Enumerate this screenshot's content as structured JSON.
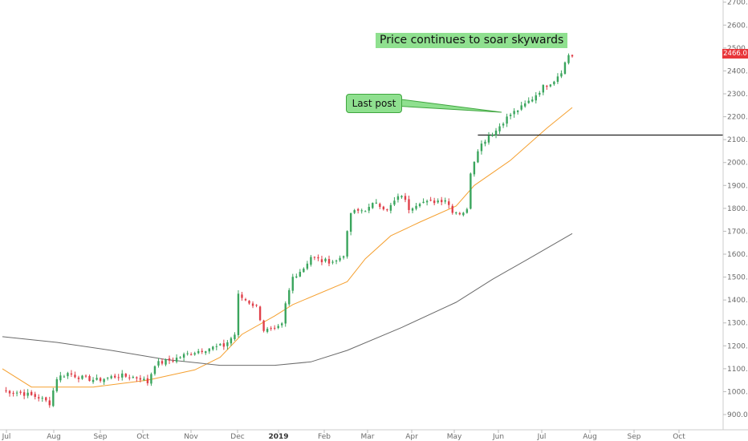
{
  "chart_data": {
    "type": "candlestick",
    "y_axis": {
      "ticks": [
        "900.0",
        "1000.0",
        "1100.0",
        "1200.0",
        "1300.0",
        "1400.0",
        "1500.0",
        "1600.0",
        "1700.0",
        "1800.0",
        "1900.0",
        "2000.0",
        "2100.0",
        "2200.0",
        "2300.0",
        "2400.0",
        "2500.0",
        "2600.0",
        "2700.0"
      ],
      "range": [
        830,
        2720
      ],
      "position": "right"
    },
    "x_axis": {
      "ticks": [
        "Jul",
        "Aug",
        "Sep",
        "Oct",
        "Nov",
        "Dec",
        "2019",
        "Feb",
        "Mar",
        "Apr",
        "May",
        "Jun",
        "Jul",
        "Aug",
        "Sep",
        "Oct"
      ],
      "bold_tick": "2019"
    },
    "price_series": {
      "anchors": [
        {
          "i": 0,
          "p": 1005
        },
        {
          "i": 5,
          "p": 995
        },
        {
          "i": 10,
          "p": 975
        },
        {
          "i": 13,
          "p": 950
        },
        {
          "i": 15,
          "p": 1060
        },
        {
          "i": 18,
          "p": 1080
        },
        {
          "i": 22,
          "p": 1060
        },
        {
          "i": 26,
          "p": 1050
        },
        {
          "i": 32,
          "p": 1070
        },
        {
          "i": 38,
          "p": 1060
        },
        {
          "i": 40,
          "p": 1040
        },
        {
          "i": 42,
          "p": 1120
        },
        {
          "i": 47,
          "p": 1140
        },
        {
          "i": 52,
          "p": 1170
        },
        {
          "i": 57,
          "p": 1190
        },
        {
          "i": 61,
          "p": 1200
        },
        {
          "i": 64,
          "p": 1250
        },
        {
          "i": 65,
          "p": 1420
        },
        {
          "i": 67,
          "p": 1400
        },
        {
          "i": 70,
          "p": 1370
        },
        {
          "i": 72,
          "p": 1270
        },
        {
          "i": 75,
          "p": 1265
        },
        {
          "i": 77,
          "p": 1290
        },
        {
          "i": 78,
          "p": 1380
        },
        {
          "i": 80,
          "p": 1500
        },
        {
          "i": 83,
          "p": 1540
        },
        {
          "i": 85,
          "p": 1590
        },
        {
          "i": 88,
          "p": 1570
        },
        {
          "i": 92,
          "p": 1570
        },
        {
          "i": 94,
          "p": 1600
        },
        {
          "i": 96,
          "p": 1780
        },
        {
          "i": 101,
          "p": 1800
        },
        {
          "i": 103,
          "p": 1830
        },
        {
          "i": 106,
          "p": 1790
        },
        {
          "i": 108,
          "p": 1830
        },
        {
          "i": 110,
          "p": 1860
        },
        {
          "i": 112,
          "p": 1800
        },
        {
          "i": 115,
          "p": 1830
        },
        {
          "i": 117,
          "p": 1825
        },
        {
          "i": 122,
          "p": 1840
        },
        {
          "i": 124,
          "p": 1790
        },
        {
          "i": 126,
          "p": 1780
        },
        {
          "i": 128,
          "p": 1790
        },
        {
          "i": 129,
          "p": 1960
        },
        {
          "i": 131,
          "p": 2060
        },
        {
          "i": 134,
          "p": 2120
        },
        {
          "i": 136,
          "p": 2140
        },
        {
          "i": 138,
          "p": 2180
        },
        {
          "i": 140,
          "p": 2210
        },
        {
          "i": 143,
          "p": 2240
        },
        {
          "i": 146,
          "p": 2280
        },
        {
          "i": 149,
          "p": 2330
        },
        {
          "i": 152,
          "p": 2360
        },
        {
          "i": 154,
          "p": 2400
        },
        {
          "i": 156,
          "p": 2470
        },
        {
          "i": 157,
          "p": 2466
        }
      ],
      "bars": 158,
      "gap": {
        "from": 127,
        "to": 128
      }
    },
    "moving_averages": [
      {
        "color": "#f5a030",
        "points": [
          {
            "i": 0,
            "p": 1100
          },
          {
            "i": 8,
            "p": 1020
          },
          {
            "i": 25,
            "p": 1020
          },
          {
            "i": 40,
            "p": 1050
          },
          {
            "i": 53,
            "p": 1095
          },
          {
            "i": 60,
            "p": 1150
          },
          {
            "i": 66,
            "p": 1250
          },
          {
            "i": 75,
            "p": 1330
          },
          {
            "i": 80,
            "p": 1380
          },
          {
            "i": 95,
            "p": 1480
          },
          {
            "i": 100,
            "p": 1580
          },
          {
            "i": 107,
            "p": 1680
          },
          {
            "i": 115,
            "p": 1740
          },
          {
            "i": 125,
            "p": 1810
          },
          {
            "i": 130,
            "p": 1900
          },
          {
            "i": 140,
            "p": 2010
          },
          {
            "i": 150,
            "p": 2150
          },
          {
            "i": 157,
            "p": 2240
          }
        ]
      },
      {
        "color": "#6a6a6a",
        "points": [
          {
            "i": 0,
            "p": 1240
          },
          {
            "i": 15,
            "p": 1215
          },
          {
            "i": 30,
            "p": 1180
          },
          {
            "i": 45,
            "p": 1140
          },
          {
            "i": 60,
            "p": 1115
          },
          {
            "i": 75,
            "p": 1115
          },
          {
            "i": 85,
            "p": 1130
          },
          {
            "i": 95,
            "p": 1180
          },
          {
            "i": 110,
            "p": 1280
          },
          {
            "i": 125,
            "p": 1390
          },
          {
            "i": 135,
            "p": 1490
          },
          {
            "i": 145,
            "p": 1580
          },
          {
            "i": 157,
            "p": 1690
          }
        ]
      }
    ],
    "horizontal_line": {
      "value": 2120,
      "color": "#111111"
    },
    "last_price": "2466.0",
    "annotations": [
      {
        "text": "Price continues to soar skywards"
      },
      {
        "text": "Last post"
      }
    ]
  },
  "annotations": {
    "title_note": "Price continues to soar skywards",
    "callout": "Last post"
  }
}
